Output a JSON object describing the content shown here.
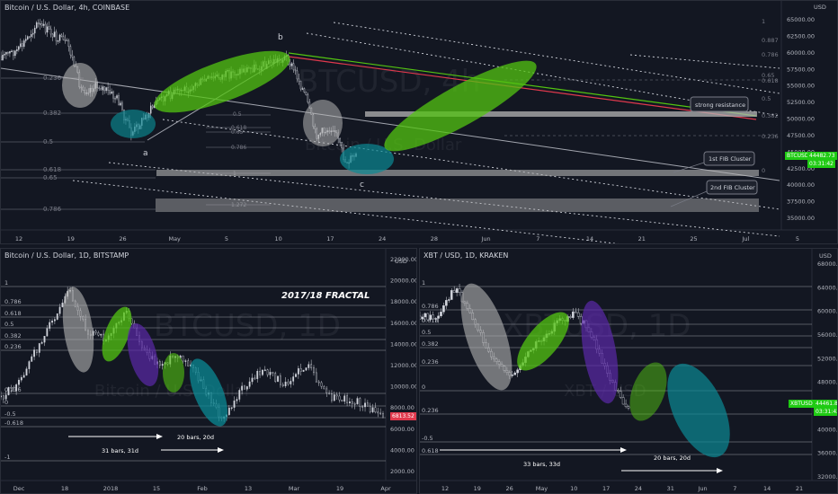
{
  "colors": {
    "bg": "#131722",
    "up": "#26a69a",
    "grid": "#2a2e39",
    "fib": "#787b86",
    "green": "#53c411",
    "teal": "#0b8a94",
    "purple": "#5b2aa8",
    "gray": "#b4b4b4",
    "priceGreen": "#1fcb13",
    "priceRed": "#e0394d"
  },
  "top": {
    "title": "Bitcoin / U.S. Dollar, 4h, COINBASE",
    "watermark1": "BTCUSD, 4h",
    "watermark2": "Bitcoin / U.S. Dollar",
    "currency": "USD",
    "price_label": "BTCUSD",
    "price": "44482.73",
    "countdown": "03:31:42",
    "y_ticks": [
      "65000.00",
      "62500.00",
      "60000.00",
      "57500.00",
      "55000.00",
      "52500.00",
      "50000.00",
      "47500.00",
      "45000.00",
      "42500.00",
      "40000.00",
      "37500.00",
      "35000.00"
    ],
    "x_ticks": [
      "12",
      "19",
      "26",
      "May",
      "5",
      "10",
      "17",
      "24",
      "28",
      "Jun",
      "7",
      "14",
      "21",
      "25",
      "Jul",
      "5"
    ],
    "left_fib": [
      "0.236",
      "0.382",
      "0.5",
      "0.618",
      "0.65",
      "0.786"
    ],
    "right_fib": [
      "1",
      "0.887",
      "0.786",
      "0.65",
      "0.618",
      "0.5",
      "0.382",
      "0.236",
      "0"
    ],
    "mid_fib": [
      "0.5",
      "0.618",
      "0.65",
      "0.786",
      "1",
      "1.272"
    ],
    "labels": {
      "a": "a",
      "b": "b",
      "c": "c"
    },
    "annotations": [
      "strong resistance",
      "1st FIB Cluster",
      "2nd FIB Cluster"
    ]
  },
  "left": {
    "title": "Bitcoin / U.S. Dollar, 1D, BITSTAMP",
    "watermark1": "BTCUSD, 1D",
    "watermark2": "Bitcoin / U.S. Dollar",
    "currency": "USD",
    "heading": "2017/18 FRACTAL",
    "price": "6813.52",
    "y_ticks": [
      "22000.00",
      "20000.00",
      "18000.00",
      "16000.00",
      "14000.00",
      "12000.00",
      "10000.00",
      "8000.00",
      "6000.00",
      "4000.00",
      "2000.00"
    ],
    "x_ticks": [
      "Dec",
      "18",
      "2018",
      "15",
      "Feb",
      "13",
      "Mar",
      "19",
      "Apr"
    ],
    "fib": [
      "1",
      "0.786",
      "0.618",
      "0.5",
      "0.382",
      "0.236",
      "0.236",
      "0",
      "-0.5",
      "-0.618",
      "-1"
    ],
    "arrow1": "31 bars, 31d",
    "arrow2": "20 bars, 20d"
  },
  "right": {
    "title": "XBT / USD, 1D, KRAKEN",
    "watermark1": "XBTUSD, 1D",
    "watermark2": "XBT / USD",
    "currency": "USD",
    "price_label": "XBTUSD",
    "price": "44461.8",
    "countdown": "03:31:42",
    "y_ticks": [
      "68000.00",
      "64000.00",
      "60000.00",
      "56000.00",
      "52000.00",
      "48000.00",
      "44000.00",
      "40000.00",
      "36000.00",
      "32000.00"
    ],
    "x_ticks": [
      "12",
      "19",
      "26",
      "May",
      "10",
      "17",
      "24",
      "31",
      "Jun",
      "7",
      "14",
      "21"
    ],
    "fib": [
      "1",
      "0.786",
      "0.618",
      "0.5",
      "0.382",
      "0.236",
      "0",
      "0.236",
      "-0.5",
      "0.618"
    ],
    "arrow1": "33 bars, 33d",
    "arrow2": "20 bars, 20d"
  },
  "chart_data": [
    {
      "type": "line",
      "title": "Bitcoin / U.S. Dollar, 4h, COINBASE",
      "ylabel": "USD",
      "ylim": [
        34000,
        66000
      ],
      "x": [
        "Apr 12",
        "Apr 19",
        "Apr 26",
        "May 5",
        "May 10",
        "May 17",
        "May 24",
        "Jun",
        "Jun 7",
        "Jun 14",
        "Jun 21",
        "Jul"
      ],
      "series": [
        {
          "values": [
            60000,
            55500,
            48800,
            54500,
            58500,
            59000,
            49000,
            null,
            null,
            null,
            null,
            null
          ]
        }
      ]
    },
    {
      "type": "line",
      "title": "Bitcoin / U.S. Dollar, 1D, BITSTAMP",
      "ylabel": "USD",
      "ylim": [
        1000,
        23000
      ],
      "x": [
        "Dec",
        "Dec 18",
        "2018",
        "Jan 15",
        "Feb",
        "Feb 13",
        "Mar",
        "Mar 19",
        "Apr"
      ],
      "series": [
        {
          "values": [
            11000,
            19000,
            14000,
            11500,
            7500,
            9500,
            11000,
            8500,
            6813.52
          ]
        }
      ]
    },
    {
      "type": "line",
      "title": "XBT / USD, 1D, KRAKEN",
      "ylabel": "USD",
      "ylim": [
        31000,
        69000
      ],
      "x": [
        "Apr 12",
        "Apr 19",
        "Apr 26",
        "May",
        "May 10",
        "May 17",
        "May 24"
      ],
      "series": [
        {
          "values": [
            60000,
            56000,
            51000,
            56000,
            58000,
            44461.8,
            null
          ]
        }
      ]
    }
  ]
}
